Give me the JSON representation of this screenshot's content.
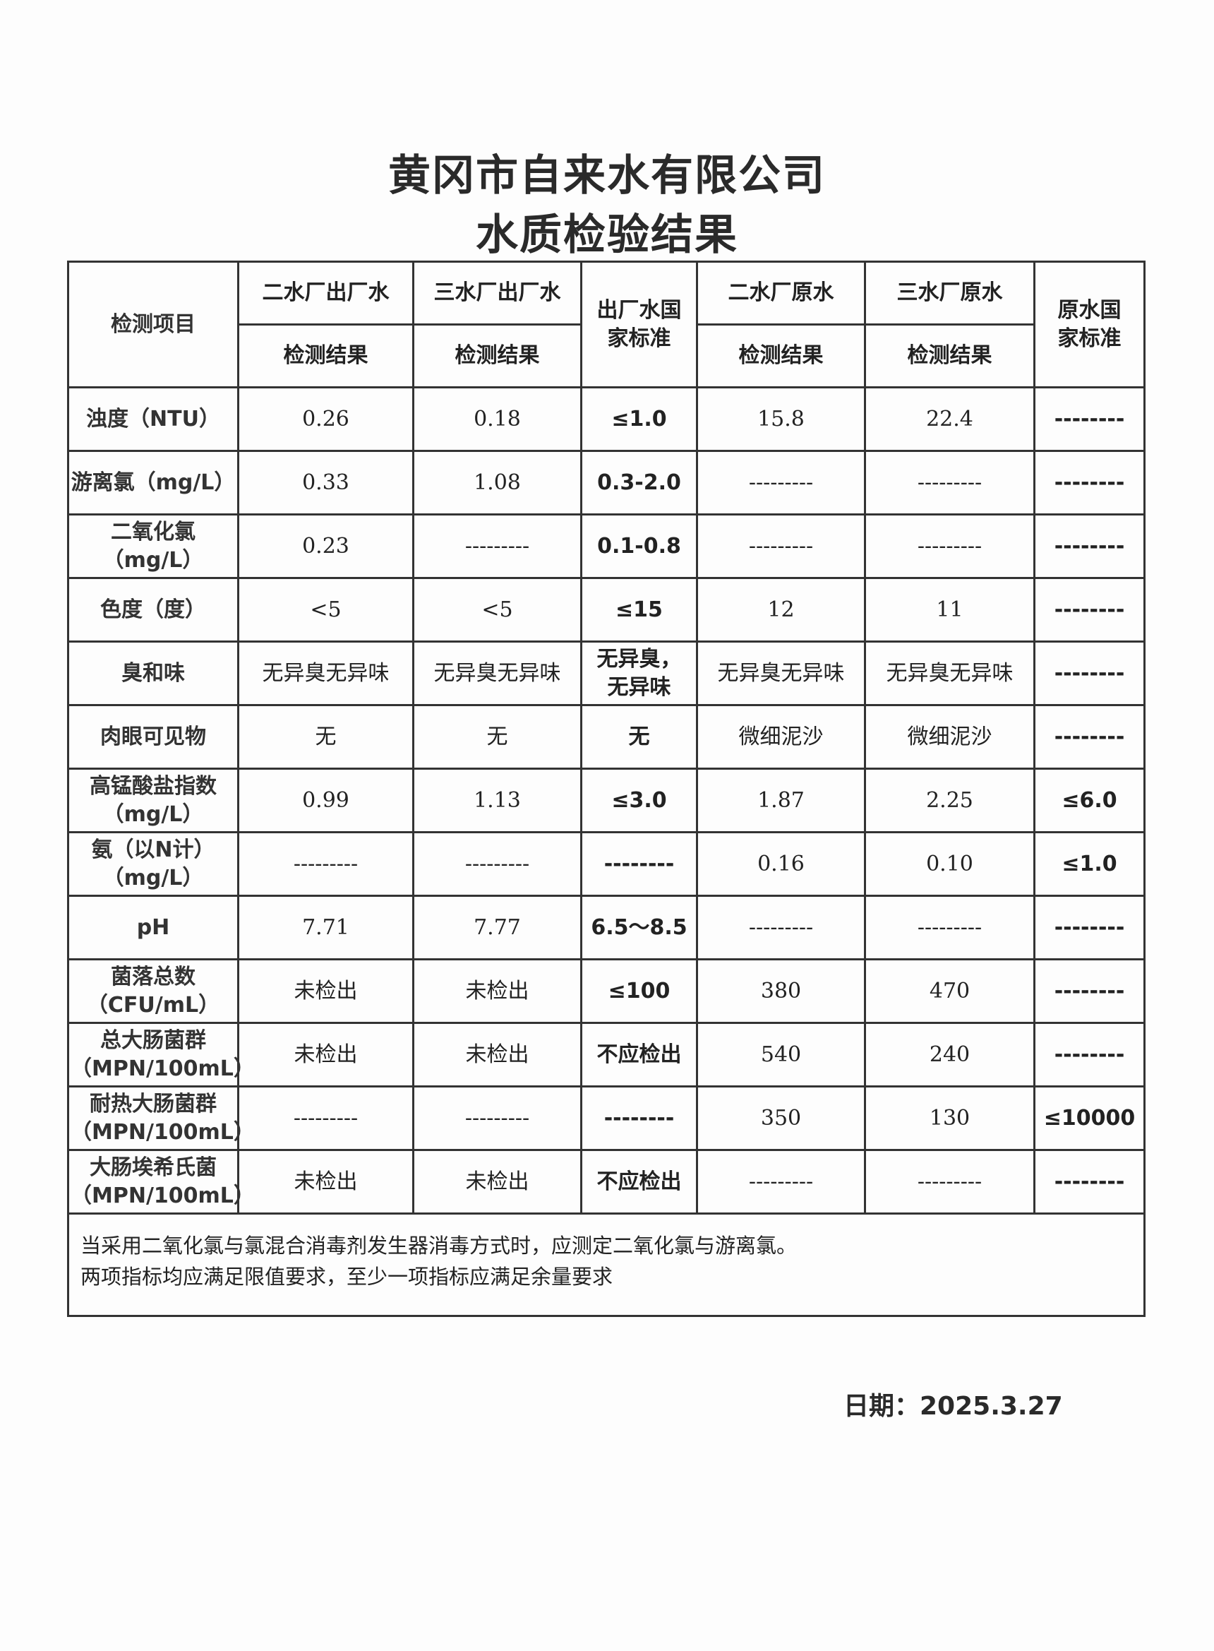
{
  "title": {
    "line1": "黄冈市自来水有限公司",
    "line2": "水质检验结果"
  },
  "header": {
    "item": "检测项目",
    "cols": [
      "二水厂出厂水",
      "三水厂出厂水",
      "出厂水国家标准",
      "二水厂原水",
      "三水厂原水",
      "原水国家标准"
    ],
    "sub": "检测结果"
  },
  "rows": [
    {
      "item": [
        "浊度（NTU）"
      ],
      "v": [
        "0.26",
        "0.18",
        "≤1.0",
        "15.8",
        "22.4",
        "--------"
      ]
    },
    {
      "item": [
        "游离氯（mg/L）"
      ],
      "v": [
        "0.33",
        "1.08",
        "0.3-2.0",
        "---------",
        "---------",
        "--------"
      ]
    },
    {
      "item": [
        "二氧化氯",
        "（mg/L）"
      ],
      "v": [
        "0.23",
        "---------",
        "0.1-0.8",
        "---------",
        "---------",
        "--------"
      ]
    },
    {
      "item": [
        "色度（度）"
      ],
      "v": [
        "<5",
        "<5",
        "≤15",
        "12",
        "11",
        "--------"
      ]
    },
    {
      "item": [
        "臭和味"
      ],
      "v": [
        "无异臭无异味",
        "无异臭无异味",
        "无异臭，无异味",
        "无异臭无异味",
        "无异臭无异味",
        "--------"
      ]
    },
    {
      "item": [
        "肉眼可见物"
      ],
      "v": [
        "无",
        "无",
        "无",
        "微细泥沙",
        "微细泥沙",
        "--------"
      ]
    },
    {
      "item": [
        "高锰酸盐指数",
        "（mg/L）"
      ],
      "v": [
        "0.99",
        "1.13",
        "≤3.0",
        "1.87",
        "2.25",
        "≤6.0"
      ]
    },
    {
      "item": [
        "氨（以N计）",
        "（mg/L）"
      ],
      "v": [
        "---------",
        "---------",
        "--------",
        "0.16",
        "0.10",
        "≤1.0"
      ]
    },
    {
      "item": [
        "pH"
      ],
      "v": [
        "7.71",
        "7.77",
        "6.5～8.5",
        "---------",
        "---------",
        "--------"
      ]
    },
    {
      "item": [
        "菌落总数",
        "（CFU/mL）"
      ],
      "v": [
        "未检出",
        "未检出",
        "≤100",
        "380",
        "470",
        "--------"
      ]
    },
    {
      "item": [
        "总大肠菌群",
        "（MPN/100mL）"
      ],
      "v": [
        "未检出",
        "未检出",
        "不应检出",
        "540",
        "240",
        "--------"
      ]
    },
    {
      "item": [
        "耐热大肠菌群",
        "（MPN/100mL）"
      ],
      "v": [
        "---------",
        "---------",
        "--------",
        "350",
        "130",
        "≤10000"
      ]
    },
    {
      "item": [
        "大肠埃希氏菌",
        "（MPN/100mL）"
      ],
      "v": [
        "未检出",
        "未检出",
        "不应检出",
        "---------",
        "---------",
        "--------"
      ]
    }
  ],
  "note": {
    "line1": "当采用二氧化氯与氯混合消毒剂发生器消毒方式时，应测定二氧化氯与游离氯。",
    "line2": "两项指标均应满足限值要求，至少一项指标应满足余量要求"
  },
  "date": "日期：2025.3.27"
}
